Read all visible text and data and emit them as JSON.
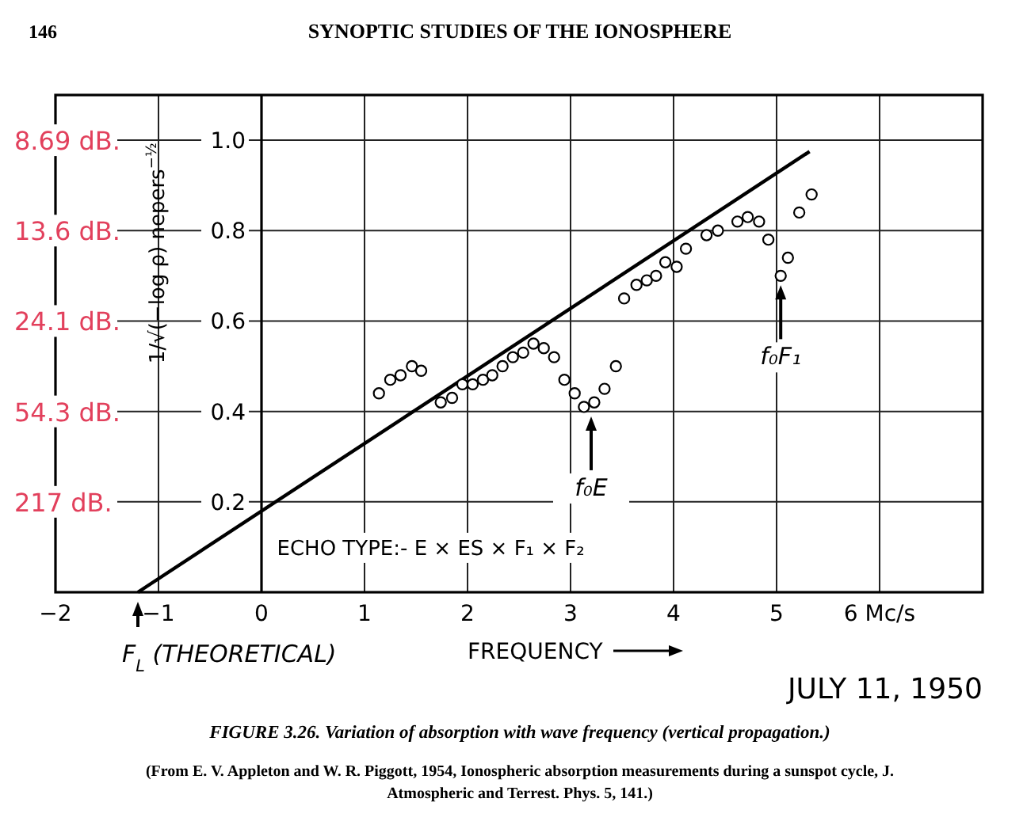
{
  "chart_data": {
    "type": "scatter",
    "title": "FIGURE 3.26. Variation of absorption with wave frequency (vertical propagation.)",
    "xlabel": "FREQUENCY",
    "ylabel": "1/√(−log ρ)  nepers$^{−½}$",
    "xlim": [
      -2,
      7
    ],
    "xticks": [
      {
        "value": -2,
        "label": "−2"
      },
      {
        "value": -1,
        "label": "−1"
      },
      0,
      1,
      2,
      3,
      4,
      5,
      {
        "value": 6,
        "label": "6 Mc/s"
      }
    ],
    "ylim": [
      0,
      1.1
    ],
    "yticks": [
      0.2,
      0.4,
      0.6,
      0.8,
      {
        "value": 1.0,
        "label": "1.0"
      }
    ],
    "grid": true,
    "marker": "circle",
    "series": [
      {
        "color": "#000000",
        "x": [
          1.14,
          1.25,
          1.35,
          1.46,
          1.55,
          1.74,
          1.85,
          1.95,
          2.05,
          2.15,
          2.24,
          2.34,
          2.44,
          2.54,
          2.64,
          2.74,
          2.84,
          2.94,
          3.04,
          3.13,
          3.23,
          3.33,
          3.44,
          3.52,
          3.64,
          3.74,
          3.83,
          3.92,
          4.03,
          4.12,
          4.32,
          4.43,
          4.62,
          4.72,
          4.83,
          4.92,
          5.04,
          5.11,
          5.22,
          5.34
        ],
        "values": [
          0.44,
          0.47,
          0.48,
          0.5,
          0.49,
          0.42,
          0.43,
          0.46,
          0.46,
          0.47,
          0.48,
          0.5,
          0.52,
          0.53,
          0.55,
          0.54,
          0.52,
          0.47,
          0.44,
          0.41,
          0.42,
          0.45,
          0.5,
          0.65,
          0.68,
          0.69,
          0.7,
          0.73,
          0.72,
          0.76,
          0.79,
          0.8,
          0.82,
          0.83,
          0.82,
          0.78,
          0.7,
          0.74,
          0.84,
          0.88
        ]
      },
      {
        "type": "line",
        "color": "#000000",
        "marker": "none",
        "x": [
          -1.2,
          5.32
        ],
        "values": [
          0,
          0.975
        ]
      }
    ],
    "annotations": [
      "146",
      "SYNOPTIC STUDIES OF THE IONOSPHERE",
      "ECHO TYPE:-   E    ×    ES × F₁   ×    F₂",
      "JULY 11, 1950",
      "(From E. V. Appleton and W. R. Piggott, 1954, Ionospheric absorption measurements during a sunspot cycle, J. Atmospheric and Terrest. Phys. 5, 141.)",
      "217 dB.",
      "54.3 dB.",
      "24.1 dB.",
      "13.6 dB.",
      "8.69 dB.",
      {
        "text": "f₀E",
        "x": 3.2,
        "y": 0.41
      },
      {
        "text": "f₀F₁",
        "x": 5.04,
        "y": 0.7
      },
      {
        "text": "F$_{L}$ (THEORETICAL)",
        "x": -1.2,
        "y": 0
      }
    ]
  }
}
